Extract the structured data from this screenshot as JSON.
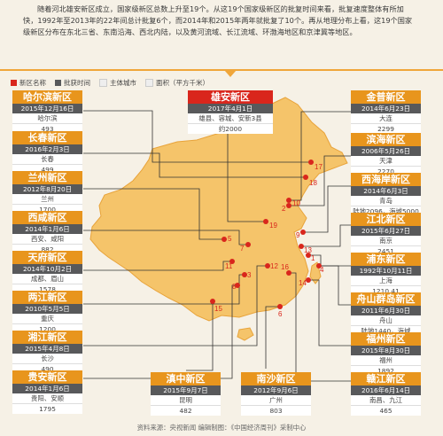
{
  "intro": "随着河北雄安新区成立，国家级新区总数上升至19个。从这19个国家级新区的批复时间来看，批复速度整体有所加快，1992年至2013年的22年间总计批复6个，而2014年和2015年两年就批复了10个。再从地理分布上看，这19个国家级新区分布在东北三省、东南沿海、西北内陆，以及黄河流域、长江流域、环渤海地区和京津冀等地区。",
  "legend": [
    {
      "label": "新区名称",
      "color": "#d9261c"
    },
    {
      "label": "批获时间",
      "color": "#58595b"
    },
    {
      "label": "主体城市",
      "color": "#eeeeee"
    },
    {
      "label": "面积（平方千米）",
      "color": "#eeeeee"
    }
  ],
  "areas": [
    {
      "name": "哈尔滨新区",
      "date": "2015年12月16日",
      "city": "哈尔滨",
      "area": "493",
      "marker": "17"
    },
    {
      "name": "长春新区",
      "date": "2016年2月3日",
      "city": "长春",
      "area": "499",
      "marker": "18"
    },
    {
      "name": "兰州新区",
      "date": "2012年8月20日",
      "city": "兰州",
      "area": "1700",
      "marker": "5"
    },
    {
      "name": "西咸新区",
      "date": "2014年1月6日",
      "city": "西安、咸阳",
      "area": "882",
      "marker": "7"
    },
    {
      "name": "天府新区",
      "date": "2014年10月2日",
      "city": "成都、眉山",
      "area": "1578",
      "marker": "11"
    },
    {
      "name": "两江新区",
      "date": "2010年5月5日",
      "city": "重庆",
      "area": "1200",
      "marker": "3"
    },
    {
      "name": "湘江新区",
      "date": "2015年4月8日",
      "city": "长沙",
      "area": "490",
      "marker": "12"
    },
    {
      "name": "贵安新区",
      "date": "2014年1月6日",
      "city": "贵阳、安顺",
      "area": "1795",
      "marker": "8"
    },
    {
      "name": "滇中新区",
      "date": "2015年9月7日",
      "city": "昆明",
      "area": "482",
      "marker": "15"
    },
    {
      "name": "南沙新区",
      "date": "2012年9月6日",
      "city": "广州",
      "area": "803",
      "marker": "6"
    },
    {
      "name": "金普新区",
      "date": "2014年6月23日",
      "city": "大连",
      "area": "2299",
      "marker": "10"
    },
    {
      "name": "滨海新区",
      "date": "2006年5月26日",
      "city": "天津",
      "area": "2270",
      "marker": "2"
    },
    {
      "name": "西海岸新区",
      "date": "2014年6月3日",
      "city": "青岛",
      "area": "陆地2096，海域5000",
      "marker": "9"
    },
    {
      "name": "江北新区",
      "date": "2015年6月27日",
      "city": "南京",
      "area": "2451",
      "marker": "13"
    },
    {
      "name": "浦东新区",
      "date": "1992年10月11日",
      "city": "上海",
      "area": "1210.41",
      "marker": "1"
    },
    {
      "name": "舟山群岛新区",
      "date": "2011年6月30日",
      "city": "舟山",
      "area": "陆地1440，海域20800",
      "marker": "4"
    },
    {
      "name": "福州新区",
      "date": "2015年8月30日",
      "city": "福州",
      "area": "1892",
      "marker": "14"
    },
    {
      "name": "赣江新区",
      "date": "2016年6月14日",
      "city": "南昌、九江",
      "area": "465",
      "marker": "16"
    },
    {
      "name": "雄安新区",
      "date": "2017年4月1日",
      "city": "雄县、容城、安新3县",
      "area": "约2000",
      "marker": "19"
    }
  ],
  "source": "资料来源：央视新闻  编辑制图：《中国经济周刊》采制中心"
}
